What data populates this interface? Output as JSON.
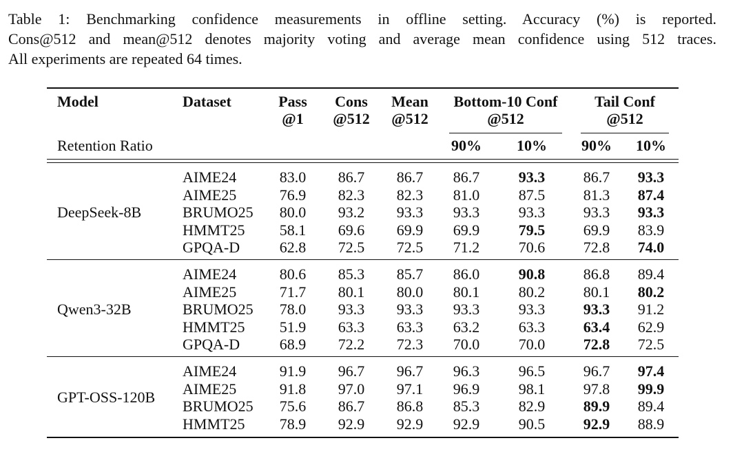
{
  "caption": [
    "Table 1:  Benchmarking confidence measurements in offline setting.  Accuracy (%) is reported.",
    "Cons@512 and mean@512 denotes majority voting and average mean confidence using 512 traces.",
    "All experiments are repeated 64 times."
  ],
  "table": {
    "header": [
      [
        "Model"
      ],
      [
        "Dataset"
      ],
      [
        "Pass",
        "@1"
      ],
      [
        "Cons",
        "@512"
      ],
      [
        "Mean",
        "@512"
      ],
      [
        "Bottom-10 Conf",
        "@512"
      ],
      [
        "Tail Conf",
        "@512"
      ]
    ],
    "subheader": {
      "label": "Retention Ratio",
      "ratios": [
        "90%",
        "10%",
        "90%",
        "10%"
      ]
    },
    "groups": [
      {
        "model": "DeepSeek-8B",
        "rows": [
          {
            "dataset": "AIME24",
            "values": [
              "83.0",
              "86.7",
              "86.7",
              "86.7",
              "93.3",
              "86.7",
              "93.3"
            ],
            "bold": [
              4,
              6
            ]
          },
          {
            "dataset": "AIME25",
            "values": [
              "76.9",
              "82.3",
              "82.3",
              "81.0",
              "87.5",
              "81.3",
              "87.4"
            ],
            "bold": [
              6
            ]
          },
          {
            "dataset": "BRUMO25",
            "values": [
              "80.0",
              "93.2",
              "93.3",
              "93.3",
              "93.3",
              "93.3",
              "93.3"
            ],
            "bold": [
              6
            ]
          },
          {
            "dataset": "HMMT25",
            "values": [
              "58.1",
              "69.6",
              "69.9",
              "69.9",
              "79.5",
              "69.9",
              "83.9"
            ],
            "bold": [
              4
            ]
          },
          {
            "dataset": "GPQA-D",
            "values": [
              "62.8",
              "72.5",
              "72.5",
              "71.2",
              "70.6",
              "72.8",
              "74.0"
            ],
            "bold": [
              6
            ]
          }
        ]
      },
      {
        "model": "Qwen3-32B",
        "rows": [
          {
            "dataset": "AIME24",
            "values": [
              "80.6",
              "85.3",
              "85.7",
              "86.0",
              "90.8",
              "86.8",
              "89.4"
            ],
            "bold": [
              4
            ]
          },
          {
            "dataset": "AIME25",
            "values": [
              "71.7",
              "80.1",
              "80.0",
              "80.1",
              "80.2",
              "80.1",
              "80.2"
            ],
            "bold": [
              6
            ]
          },
          {
            "dataset": "BRUMO25",
            "values": [
              "78.0",
              "93.3",
              "93.3",
              "93.3",
              "93.3",
              "93.3",
              "91.2"
            ],
            "bold": [
              5
            ]
          },
          {
            "dataset": "HMMT25",
            "values": [
              "51.9",
              "63.3",
              "63.3",
              "63.2",
              "63.3",
              "63.4",
              "62.9"
            ],
            "bold": [
              5
            ]
          },
          {
            "dataset": "GPQA-D",
            "values": [
              "68.9",
              "72.2",
              "72.3",
              "70.0",
              "70.0",
              "72.8",
              "72.5"
            ],
            "bold": [
              5
            ]
          }
        ]
      },
      {
        "model": "GPT-OSS-120B",
        "rows": [
          {
            "dataset": "AIME24",
            "values": [
              "91.9",
              "96.7",
              "96.7",
              "96.3",
              "96.5",
              "96.7",
              "97.4"
            ],
            "bold": [
              6
            ]
          },
          {
            "dataset": "AIME25",
            "values": [
              "91.8",
              "97.0",
              "97.1",
              "96.9",
              "98.1",
              "97.8",
              "99.9"
            ],
            "bold": [
              6
            ]
          },
          {
            "dataset": "BRUMO25",
            "values": [
              "75.6",
              "86.7",
              "86.8",
              "85.3",
              "82.9",
              "89.9",
              "89.4"
            ],
            "bold": [
              5
            ]
          },
          {
            "dataset": "HMMT25",
            "values": [
              "78.9",
              "92.9",
              "92.9",
              "92.9",
              "90.5",
              "92.9",
              "88.9"
            ],
            "bold": [
              5
            ]
          }
        ]
      }
    ]
  }
}
